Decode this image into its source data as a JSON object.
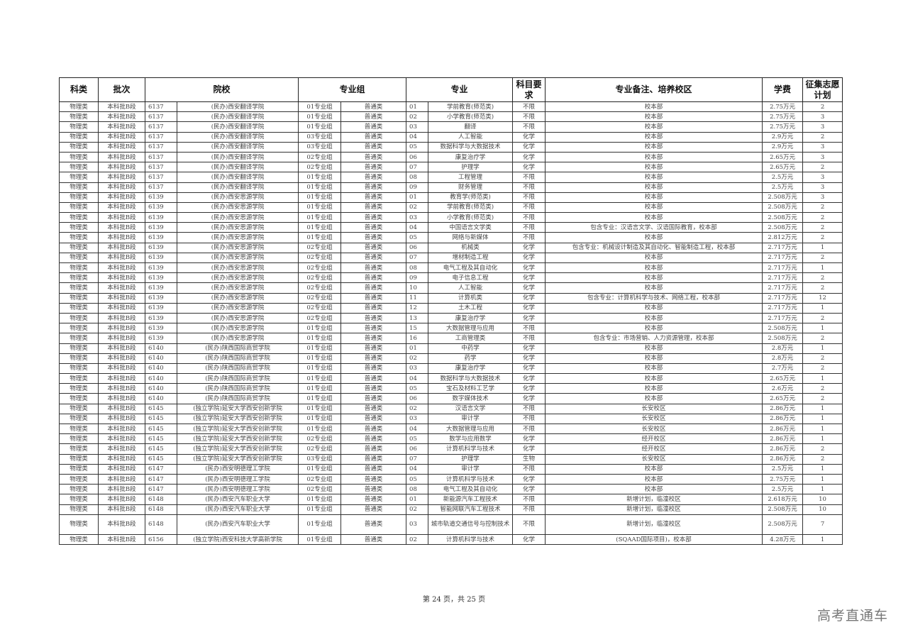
{
  "table": {
    "headers": [
      "科类",
      "批次",
      "院校",
      "专业组",
      "专业",
      "科目要求",
      "专业备注、培养校区",
      "学费",
      "征集志愿计划"
    ],
    "rows": [
      [
        "物理类",
        "本科批B段",
        "6137",
        "(民办)西安翻译学院",
        "01专业组",
        "普通类",
        "01",
        "学前教育(师范类)",
        "不限",
        "校本部",
        "2.75万元",
        "2"
      ],
      [
        "物理类",
        "本科批B段",
        "6137",
        "(民办)西安翻译学院",
        "01专业组",
        "普通类",
        "02",
        "小学教育(师范类)",
        "不限",
        "校本部",
        "2.75万元",
        "3"
      ],
      [
        "物理类",
        "本科批B段",
        "6137",
        "(民办)西安翻译学院",
        "01专业组",
        "普通类",
        "03",
        "翻译",
        "不限",
        "校本部",
        "2.75万元",
        "3"
      ],
      [
        "物理类",
        "本科批B段",
        "6137",
        "(民办)西安翻译学院",
        "03专业组",
        "普通类",
        "04",
        "人工智能",
        "化学",
        "校本部",
        "2.9万元",
        "2"
      ],
      [
        "物理类",
        "本科批B段",
        "6137",
        "(民办)西安翻译学院",
        "03专业组",
        "普通类",
        "05",
        "数据科学与大数据技术",
        "化学",
        "校本部",
        "2.9万元",
        "3"
      ],
      [
        "物理类",
        "本科批B段",
        "6137",
        "(民办)西安翻译学院",
        "02专业组",
        "普通类",
        "06",
        "康复治疗学",
        "化学",
        "校本部",
        "2.65万元",
        "3"
      ],
      [
        "物理类",
        "本科批B段",
        "6137",
        "(民办)西安翻译学院",
        "02专业组",
        "普通类",
        "07",
        "护理学",
        "化学",
        "校本部",
        "2.65万元",
        "2"
      ],
      [
        "物理类",
        "本科批B段",
        "6137",
        "(民办)西安翻译学院",
        "01专业组",
        "普通类",
        "08",
        "工程管理",
        "不限",
        "校本部",
        "2.5万元",
        "3"
      ],
      [
        "物理类",
        "本科批B段",
        "6137",
        "(民办)西安翻译学院",
        "01专业组",
        "普通类",
        "09",
        "财务管理",
        "不限",
        "校本部",
        "2.5万元",
        "3"
      ],
      [
        "物理类",
        "本科批B段",
        "6139",
        "(民办)西安思源学院",
        "01专业组",
        "普通类",
        "01",
        "教育学(师范类)",
        "不限",
        "校本部",
        "2.508万元",
        "3"
      ],
      [
        "物理类",
        "本科批B段",
        "6139",
        "(民办)西安思源学院",
        "01专业组",
        "普通类",
        "02",
        "学前教育(师范类)",
        "不限",
        "校本部",
        "2.508万元",
        "2"
      ],
      [
        "物理类",
        "本科批B段",
        "6139",
        "(民办)西安思源学院",
        "01专业组",
        "普通类",
        "03",
        "小学教育(师范类)",
        "不限",
        "校本部",
        "2.508万元",
        "2"
      ],
      [
        "物理类",
        "本科批B段",
        "6139",
        "(民办)西安思源学院",
        "01专业组",
        "普通类",
        "04",
        "中国语言文学类",
        "不限",
        "包含专业：汉语言文学、汉语国际教育，校本部",
        "2.508万元",
        "2"
      ],
      [
        "物理类",
        "本科批B段",
        "6139",
        "(民办)西安思源学院",
        "01专业组",
        "普通类",
        "05",
        "网络与新媒体",
        "不限",
        "校本部",
        "2.812万元",
        "2"
      ],
      [
        "物理类",
        "本科批B段",
        "6139",
        "(民办)西安思源学院",
        "02专业组",
        "普通类",
        "06",
        "机械类",
        "化学",
        "包含专业：机械设计制造及其自动化、智能制造工程，校本部",
        "2.717万元",
        "1"
      ],
      [
        "物理类",
        "本科批B段",
        "6139",
        "(民办)西安思源学院",
        "02专业组",
        "普通类",
        "07",
        "增材制造工程",
        "化学",
        "校本部",
        "2.717万元",
        "2"
      ],
      [
        "物理类",
        "本科批B段",
        "6139",
        "(民办)西安思源学院",
        "02专业组",
        "普通类",
        "08",
        "电气工程及其自动化",
        "化学",
        "校本部",
        "2.717万元",
        "1"
      ],
      [
        "物理类",
        "本科批B段",
        "6139",
        "(民办)西安思源学院",
        "02专业组",
        "普通类",
        "09",
        "电子信息工程",
        "化学",
        "校本部",
        "2.717万元",
        "2"
      ],
      [
        "物理类",
        "本科批B段",
        "6139",
        "(民办)西安思源学院",
        "02专业组",
        "普通类",
        "10",
        "人工智能",
        "化学",
        "校本部",
        "2.717万元",
        "2"
      ],
      [
        "物理类",
        "本科批B段",
        "6139",
        "(民办)西安思源学院",
        "02专业组",
        "普通类",
        "11",
        "计算机类",
        "化学",
        "包含专业：计算机科学与技术、网络工程，校本部",
        "2.717万元",
        "12"
      ],
      [
        "物理类",
        "本科批B段",
        "6139",
        "(民办)西安思源学院",
        "02专业组",
        "普通类",
        "12",
        "土木工程",
        "化学",
        "校本部",
        "2.717万元",
        "1"
      ],
      [
        "物理类",
        "本科批B段",
        "6139",
        "(民办)西安思源学院",
        "02专业组",
        "普通类",
        "13",
        "康复治疗学",
        "化学",
        "校本部",
        "2.717万元",
        "2"
      ],
      [
        "物理类",
        "本科批B段",
        "6139",
        "(民办)西安思源学院",
        "01专业组",
        "普通类",
        "15",
        "大数据管理与应用",
        "不限",
        "校本部",
        "2.508万元",
        "1"
      ],
      [
        "物理类",
        "本科批B段",
        "6139",
        "(民办)西安思源学院",
        "01专业组",
        "普通类",
        "16",
        "工商管理类",
        "不限",
        "包含专业：市场营销、人力资源管理，校本部",
        "2.508万元",
        "2"
      ],
      [
        "物理类",
        "本科批B段",
        "6140",
        "(民办)陕西国际商贸学院",
        "01专业组",
        "普通类",
        "01",
        "中药学",
        "化学",
        "校本部",
        "2.8万元",
        "1"
      ],
      [
        "物理类",
        "本科批B段",
        "6140",
        "(民办)陕西国际商贸学院",
        "01专业组",
        "普通类",
        "02",
        "药学",
        "化学",
        "校本部",
        "2.8万元",
        "2"
      ],
      [
        "物理类",
        "本科批B段",
        "6140",
        "(民办)陕西国际商贸学院",
        "01专业组",
        "普通类",
        "03",
        "康复治疗学",
        "化学",
        "校本部",
        "2.7万元",
        "2"
      ],
      [
        "物理类",
        "本科批B段",
        "6140",
        "(民办)陕西国际商贸学院",
        "01专业组",
        "普通类",
        "04",
        "数据科学与大数据技术",
        "化学",
        "校本部",
        "2.65万元",
        "1"
      ],
      [
        "物理类",
        "本科批B段",
        "6140",
        "(民办)陕西国际商贸学院",
        "01专业组",
        "普通类",
        "05",
        "宝石及材料工艺学",
        "化学",
        "校本部",
        "2.6万元",
        "2"
      ],
      [
        "物理类",
        "本科批B段",
        "6140",
        "(民办)陕西国际商贸学院",
        "01专业组",
        "普通类",
        "06",
        "数字媒体技术",
        "化学",
        "校本部",
        "2.65万元",
        "2"
      ],
      [
        "物理类",
        "本科批B段",
        "6145",
        "(独立学院)延安大学西安创新学院",
        "01专业组",
        "普通类",
        "02",
        "汉语言文学",
        "不限",
        "长安校区",
        "2.86万元",
        "1"
      ],
      [
        "物理类",
        "本科批B段",
        "6145",
        "(独立学院)延安大学西安创新学院",
        "01专业组",
        "普通类",
        "03",
        "审计学",
        "不限",
        "长安校区",
        "2.86万元",
        "1"
      ],
      [
        "物理类",
        "本科批B段",
        "6145",
        "(独立学院)延安大学西安创新学院",
        "01专业组",
        "普通类",
        "04",
        "大数据管理与应用",
        "不限",
        "长安校区",
        "2.86万元",
        "1"
      ],
      [
        "物理类",
        "本科批B段",
        "6145",
        "(独立学院)延安大学西安创新学院",
        "02专业组",
        "普通类",
        "05",
        "数学与应用数学",
        "化学",
        "经开校区",
        "2.86万元",
        "1"
      ],
      [
        "物理类",
        "本科批B段",
        "6145",
        "(独立学院)延安大学西安创新学院",
        "02专业组",
        "普通类",
        "06",
        "计算机科学与技术",
        "化学",
        "经开校区",
        "2.86万元",
        "2"
      ],
      [
        "物理类",
        "本科批B段",
        "6145",
        "(独立学院)延安大学西安创新学院",
        "03专业组",
        "普通类",
        "07",
        "护理学",
        "生物",
        "长安校区",
        "2.86万元",
        "2"
      ],
      [
        "物理类",
        "本科批B段",
        "6147",
        "(民办)西安明德理工学院",
        "01专业组",
        "普通类",
        "04",
        "审计学",
        "不限",
        "校本部",
        "2.5万元",
        "1"
      ],
      [
        "物理类",
        "本科批B段",
        "6147",
        "(民办)西安明德理工学院",
        "02专业组",
        "普通类",
        "05",
        "计算机科学与技术",
        "化学",
        "校本部",
        "2.75万元",
        "1"
      ],
      [
        "物理类",
        "本科批B段",
        "6147",
        "(民办)西安明德理工学院",
        "02专业组",
        "普通类",
        "08",
        "电气工程及其自动化",
        "化学",
        "校本部",
        "2.5万元",
        "1"
      ],
      [
        "物理类",
        "本科批B段",
        "6148",
        "(民办)西安汽车职业大学",
        "01专业组",
        "普通类",
        "01",
        "新能源汽车工程技术",
        "不限",
        "新增计划，临潼校区",
        "2.618万元",
        "10"
      ],
      [
        "物理类",
        "本科批B段",
        "6148",
        "(民办)西安汽车职业大学",
        "01专业组",
        "普通类",
        "02",
        "智能网联汽车工程技术",
        "不限",
        "新增计划，临潼校区",
        "2.508万元",
        "10"
      ],
      [
        "物理类",
        "本科批B段",
        "6148",
        "(民办)西安汽车职业大学",
        "01专业组",
        "普通类",
        "03",
        "城市轨道交通信号与控制技术",
        "不限",
        "新增计划，临潼校区",
        "2.508万元",
        "7"
      ],
      [
        "物理类",
        "本科批B段",
        "6156",
        "(独立学院)西安科技大学高新学院",
        "01专业组",
        "普通类",
        "02",
        "计算机科学与技术",
        "化学",
        "(SQAAD国际项目)，校本部",
        "4.28万元",
        "1"
      ]
    ]
  },
  "footer": {
    "page_info": "第 24 页，共 25 页"
  },
  "watermark": "高考直通车"
}
